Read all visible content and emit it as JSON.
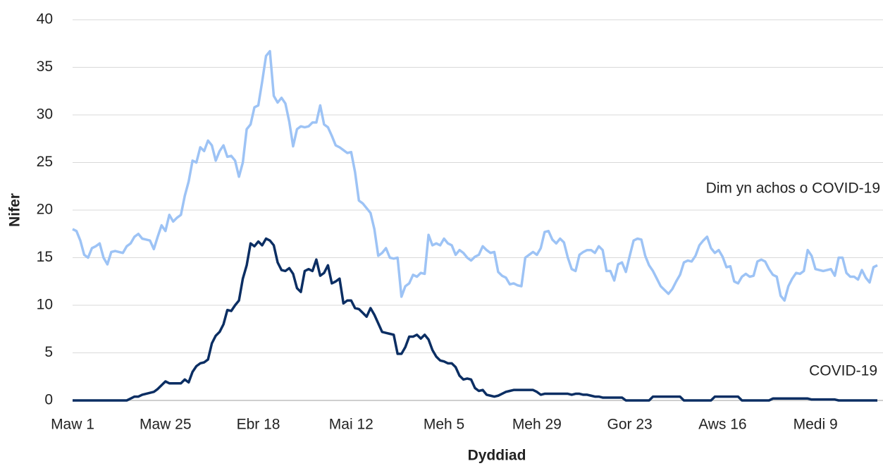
{
  "chart_data": {
    "type": "line",
    "x_label": "Dyddiad",
    "y_label": "Nifer",
    "categories": [
      "Maw 1",
      null,
      null,
      null,
      null,
      null,
      null,
      null,
      null,
      null,
      null,
      null,
      null,
      null,
      null,
      null,
      null,
      null,
      null,
      null,
      null,
      null,
      null,
      null,
      "Maw 25",
      null,
      null,
      null,
      null,
      null,
      null,
      null,
      null,
      null,
      null,
      null,
      null,
      null,
      null,
      null,
      null,
      null,
      null,
      null,
      null,
      null,
      null,
      null,
      "Ebr 18",
      null,
      null,
      null,
      null,
      null,
      null,
      null,
      null,
      null,
      null,
      null,
      null,
      null,
      null,
      null,
      null,
      null,
      null,
      null,
      null,
      null,
      null,
      null,
      "Mai 12",
      null,
      null,
      null,
      null,
      null,
      null,
      null,
      null,
      null,
      null,
      null,
      null,
      null,
      null,
      null,
      null,
      null,
      null,
      null,
      null,
      null,
      null,
      null,
      "Meh 5",
      null,
      null,
      null,
      null,
      null,
      null,
      null,
      null,
      null,
      null,
      null,
      null,
      null,
      null,
      null,
      null,
      null,
      null,
      null,
      null,
      null,
      null,
      null,
      "Meh 29",
      null,
      null,
      null,
      null,
      null,
      null,
      null,
      null,
      null,
      null,
      null,
      null,
      null,
      null,
      null,
      null,
      null,
      null,
      null,
      null,
      null,
      null,
      null,
      "Gor 23",
      null,
      null,
      null,
      null,
      null,
      null,
      null,
      null,
      null,
      null,
      null,
      null,
      null,
      null,
      null,
      null,
      null,
      null,
      null,
      null,
      null,
      null,
      null,
      "Aws 16",
      null,
      null,
      null,
      null,
      null,
      null,
      null,
      null,
      null,
      null,
      null,
      null,
      null,
      null,
      null,
      null,
      null,
      null,
      null,
      null,
      null,
      null,
      null,
      "Medi 9",
      null,
      null,
      null,
      null,
      null,
      null,
      null,
      null,
      null,
      null,
      null,
      null,
      null,
      null,
      null,
      null
    ],
    "series": [
      {
        "name": "Dim yn achos o COVID-19",
        "color": "#9dc3f5",
        "values": [
          18,
          17.8,
          16.8,
          15.3,
          15,
          16,
          16.2,
          16.5,
          15,
          14.3,
          15.6,
          15.7,
          15.6,
          15.5,
          16.2,
          16.5,
          17.2,
          17.5,
          17,
          16.9,
          16.8,
          15.9,
          17.2,
          18.4,
          17.8,
          19.5,
          18.8,
          19.2,
          19.5,
          21.5,
          23,
          25.2,
          25,
          26.6,
          26.2,
          27.3,
          26.8,
          25.2,
          26.2,
          26.8,
          25.6,
          25.7,
          25.2,
          23.5,
          25,
          28.5,
          29,
          30.8,
          31,
          33.5,
          36.2,
          36.7,
          32,
          31.3,
          31.8,
          31.2,
          29.3,
          26.7,
          28.5,
          28.8,
          28.7,
          28.8,
          29.2,
          29.2,
          31,
          29,
          28.7,
          27.8,
          26.8,
          26.6,
          26.3,
          26,
          26.1,
          24,
          21,
          20.7,
          20.2,
          19.7,
          18,
          15.2,
          15.5,
          16,
          15,
          14.9,
          15,
          10.9,
          12,
          12.3,
          13.2,
          13,
          13.4,
          13.3,
          17.4,
          16.3,
          16.5,
          16.3,
          17,
          16.5,
          16.3,
          15.3,
          15.8,
          15.5,
          15,
          14.7,
          15.1,
          15.3,
          16.2,
          15.8,
          15.5,
          15.6,
          13.5,
          13.1,
          12.9,
          12.2,
          12.3,
          12.1,
          12,
          15,
          15.3,
          15.6,
          15.3,
          16,
          17.7,
          17.8,
          16.9,
          16.5,
          17,
          16.6,
          15,
          13.8,
          13.6,
          15.3,
          15.6,
          15.8,
          15.8,
          15.5,
          16.2,
          15.8,
          13.6,
          13.6,
          12.6,
          14.3,
          14.5,
          13.5,
          15.2,
          16.8,
          17,
          16.9,
          15.2,
          14.2,
          13.6,
          12.8,
          12,
          11.6,
          11.2,
          11.7,
          12.5,
          13.2,
          14.5,
          14.7,
          14.6,
          15.2,
          16.3,
          16.8,
          17.2,
          16,
          15.5,
          15.8,
          15.1,
          14,
          14.1,
          12.5,
          12.3,
          13,
          13.3,
          13,
          13.1,
          14.6,
          14.8,
          14.6,
          13.8,
          13.2,
          13,
          11,
          10.5,
          12,
          12.8,
          13.4,
          13.3,
          13.6,
          15.8,
          15.2,
          13.8,
          13.7,
          13.6,
          13.7,
          13.8,
          13.1,
          15,
          15,
          13.4,
          13,
          13,
          12.7,
          13.7,
          12.9,
          12.4,
          14,
          14.2
        ]
      },
      {
        "name": "COVID-19",
        "color": "#0b2e63",
        "values": [
          0,
          0,
          0,
          0,
          0,
          0,
          0,
          0,
          0,
          0,
          0,
          0,
          0,
          0,
          0,
          0.2,
          0.4,
          0.4,
          0.6,
          0.7,
          0.8,
          0.9,
          1.2,
          1.6,
          2,
          1.8,
          1.8,
          1.8,
          1.8,
          2.2,
          1.9,
          3,
          3.6,
          3.9,
          4,
          4.3,
          6,
          6.8,
          7.2,
          8,
          9.5,
          9.4,
          10,
          10.5,
          12.8,
          14.2,
          16.5,
          16.2,
          16.7,
          16.3,
          17,
          16.8,
          16.3,
          14.5,
          13.7,
          13.6,
          13.9,
          13.3,
          11.8,
          11.4,
          13.6,
          13.8,
          13.6,
          14.8,
          13.1,
          13.4,
          14.2,
          12.3,
          12.5,
          12.8,
          10.2,
          10.5,
          10.5,
          9.7,
          9.6,
          9.2,
          8.8,
          9.7,
          9,
          8.1,
          7.2,
          7.1,
          7,
          6.9,
          4.9,
          4.9,
          5.6,
          6.7,
          6.7,
          6.9,
          6.5,
          6.9,
          6.4,
          5.3,
          4.6,
          4.2,
          4.1,
          3.9,
          3.9,
          3.5,
          2.6,
          2.2,
          2.3,
          2.2,
          1.3,
          1,
          1.1,
          0.6,
          0.5,
          0.4,
          0.5,
          0.7,
          0.9,
          1,
          1.1,
          1.1,
          1.1,
          1.1,
          1.1,
          1.1,
          0.9,
          0.6,
          0.7,
          0.7,
          0.7,
          0.7,
          0.7,
          0.7,
          0.7,
          0.6,
          0.7,
          0.7,
          0.6,
          0.6,
          0.5,
          0.4,
          0.4,
          0.3,
          0.3,
          0.3,
          0.3,
          0.3,
          0.3,
          0,
          0,
          0,
          0,
          0,
          0,
          0,
          0.4,
          0.4,
          0.4,
          0.4,
          0.4,
          0.4,
          0.4,
          0.4,
          0,
          0,
          0,
          0,
          0,
          0,
          0,
          0,
          0.4,
          0.4,
          0.4,
          0.4,
          0.4,
          0.4,
          0.4,
          0,
          0,
          0,
          0,
          0,
          0,
          0,
          0,
          0.2,
          0.2,
          0.2,
          0.2,
          0.2,
          0.2,
          0.2,
          0.2,
          0.2,
          0.2,
          0.1,
          0.1,
          0.1,
          0.1,
          0.1,
          0.1,
          0.1,
          0,
          0,
          0,
          0,
          0,
          0,
          0,
          0,
          0,
          0,
          0
        ]
      }
    ],
    "ylim": [
      0,
      40
    ],
    "yticks": [
      0,
      5,
      10,
      15,
      20,
      25,
      30,
      35,
      40
    ],
    "grid": true
  }
}
